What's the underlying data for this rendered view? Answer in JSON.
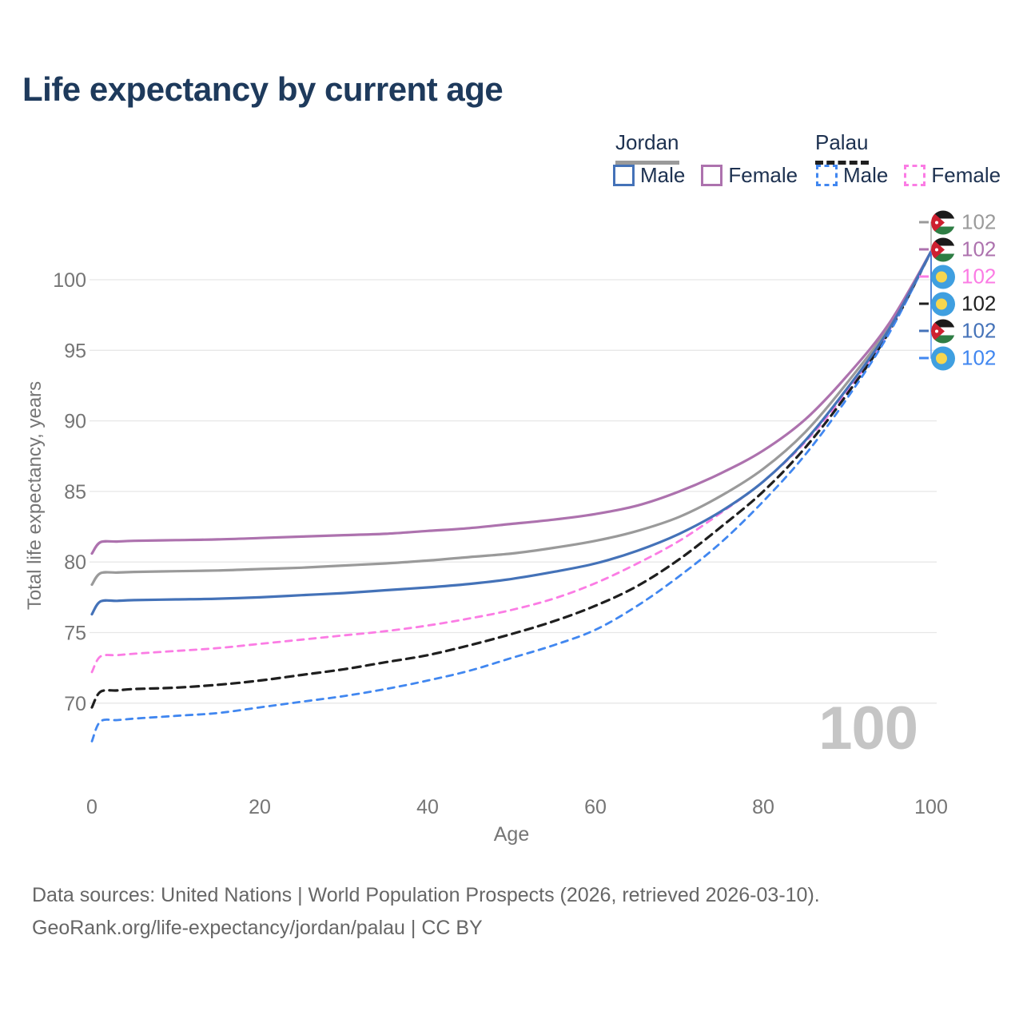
{
  "title": "Life expectancy by current age",
  "legend": {
    "jordan": {
      "name": "Jordan",
      "male": "Male",
      "female": "Female"
    },
    "palau": {
      "name": "Palau",
      "male": "Male",
      "female": "Female"
    }
  },
  "watermark_age": "100",
  "footer": {
    "line1": "Data sources: United Nations | World Population Prospects (2026, retrieved 2026-03-10).",
    "line2": "GeoRank.org/life-expectancy/jordan/palau | CC BY"
  },
  "colors": {
    "title": "#1e3a5c",
    "legend_text": "#1d3150",
    "axis_text": "#757575",
    "grid": "#e7e7e7",
    "watermark": "#c5c5c5",
    "footer_text": "#666666",
    "jordan_male": "#4472b8",
    "jordan_female": "#ad72ae",
    "jordan_total": "#9a9a9a",
    "palau_male": "#4187f0",
    "palau_female": "#fb7ce4",
    "palau_total": "#1f1f1f"
  },
  "chart_data": {
    "type": "line",
    "title": "Life expectancy by current age",
    "xlabel": "Age",
    "ylabel": "Total life expectancy, years",
    "xlim": [
      0,
      100
    ],
    "ylim": [
      66.5,
      103
    ],
    "xticks": [
      0,
      20,
      40,
      60,
      80,
      100
    ],
    "yticks": [
      70,
      75,
      80,
      85,
      90,
      95,
      100
    ],
    "grid": true,
    "legend_position": "top-right",
    "x": [
      0,
      1,
      3,
      5,
      10,
      15,
      20,
      25,
      30,
      35,
      40,
      45,
      50,
      55,
      60,
      65,
      70,
      75,
      80,
      85,
      90,
      95,
      100
    ],
    "series": [
      {
        "id": "jordan-total",
        "name": "Jordan",
        "flag": "jordan",
        "color_key": "jordan_total",
        "dash": null,
        "width": 3.2,
        "end_label": "102",
        "values": [
          78.4,
          79.2,
          79.25,
          79.3,
          79.35,
          79.4,
          79.5,
          79.6,
          79.75,
          79.9,
          80.1,
          80.35,
          80.6,
          81.0,
          81.5,
          82.2,
          83.2,
          84.7,
          86.6,
          89.2,
          92.7,
          96.7,
          102
        ]
      },
      {
        "id": "jordan-female",
        "name": "Jordan Female",
        "flag": "jordan",
        "color_key": "jordan_female",
        "dash": null,
        "width": 3.2,
        "end_label": "102",
        "values": [
          80.6,
          81.4,
          81.45,
          81.5,
          81.55,
          81.6,
          81.7,
          81.8,
          81.9,
          82.0,
          82.2,
          82.4,
          82.7,
          83.0,
          83.4,
          84.0,
          85.0,
          86.3,
          87.9,
          90.1,
          93.2,
          96.9,
          102
        ]
      },
      {
        "id": "palau-female",
        "name": "Palau Female",
        "flag": "palau",
        "color_key": "palau_female",
        "dash": "8 7",
        "width": 2.8,
        "end_label": "102",
        "values": [
          72.2,
          73.3,
          73.4,
          73.5,
          73.7,
          73.9,
          74.2,
          74.5,
          74.8,
          75.1,
          75.5,
          76.0,
          76.6,
          77.4,
          78.5,
          79.9,
          81.5,
          83.5,
          85.7,
          88.5,
          92.1,
          96.4,
          102
        ]
      },
      {
        "id": "palau-total",
        "name": "Palau",
        "flag": "palau",
        "color_key": "palau_total",
        "dash": "10 7",
        "width": 3.2,
        "end_label": "102",
        "values": [
          69.7,
          70.8,
          70.9,
          71.0,
          71.1,
          71.3,
          71.6,
          72.0,
          72.4,
          72.9,
          73.4,
          74.1,
          74.9,
          75.8,
          76.9,
          78.3,
          80.2,
          82.5,
          85.0,
          88.1,
          91.9,
          96.3,
          102
        ]
      },
      {
        "id": "jordan-male",
        "name": "Jordan Male",
        "flag": "jordan",
        "color_key": "jordan_male",
        "dash": null,
        "width": 3.2,
        "end_label": "102",
        "values": [
          76.3,
          77.2,
          77.25,
          77.3,
          77.35,
          77.4,
          77.5,
          77.65,
          77.8,
          78.0,
          78.2,
          78.45,
          78.8,
          79.3,
          79.9,
          80.8,
          82.0,
          83.6,
          85.7,
          88.6,
          92.3,
          96.5,
          102
        ]
      },
      {
        "id": "palau-male",
        "name": "Palau Male",
        "flag": "palau",
        "color_key": "palau_male",
        "dash": "8 7",
        "width": 2.8,
        "end_label": "102",
        "values": [
          67.3,
          68.7,
          68.8,
          68.9,
          69.1,
          69.3,
          69.7,
          70.1,
          70.5,
          71.0,
          71.6,
          72.3,
          73.2,
          74.1,
          75.2,
          76.9,
          79.0,
          81.4,
          84.3,
          87.6,
          91.6,
          96.2,
          102
        ]
      }
    ]
  }
}
